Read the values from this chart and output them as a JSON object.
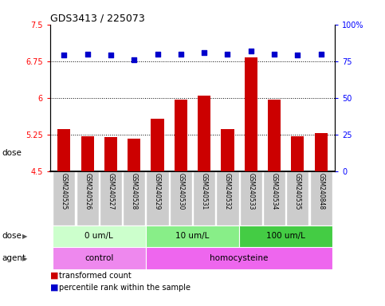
{
  "title": "GDS3413 / 225073",
  "samples": [
    "GSM240525",
    "GSM240526",
    "GSM240527",
    "GSM240528",
    "GSM240529",
    "GSM240530",
    "GSM240531",
    "GSM240532",
    "GSM240533",
    "GSM240534",
    "GSM240535",
    "GSM240848"
  ],
  "bar_values": [
    5.37,
    5.22,
    5.2,
    5.17,
    5.58,
    5.96,
    6.04,
    5.37,
    6.83,
    5.96,
    5.22,
    5.28
  ],
  "percentile_values": [
    79,
    80,
    79,
    76,
    80,
    80,
    81,
    80,
    82,
    80,
    79,
    80
  ],
  "ylim_left": [
    4.5,
    7.5
  ],
  "ylim_right": [
    0,
    100
  ],
  "yticks_left": [
    4.5,
    5.25,
    6.0,
    6.75,
    7.5
  ],
  "ytick_labels_left": [
    "4.5",
    "5.25",
    "6",
    "6.75",
    "7.5"
  ],
  "yticks_right": [
    0,
    25,
    50,
    75,
    100
  ],
  "ytick_labels_right": [
    "0",
    "25",
    "50",
    "75",
    "100%"
  ],
  "hlines": [
    5.25,
    6.0,
    6.75
  ],
  "bar_color": "#CC0000",
  "dot_color": "#0000CC",
  "bar_width": 0.55,
  "dose_groups": [
    {
      "label": "0 um/L",
      "start": 0,
      "end": 3,
      "color": "#CCFFCC"
    },
    {
      "label": "10 um/L",
      "start": 4,
      "end": 7,
      "color": "#88EE88"
    },
    {
      "label": "100 um/L",
      "start": 8,
      "end": 11,
      "color": "#44CC44"
    }
  ],
  "agent_groups": [
    {
      "label": "control",
      "start": 0,
      "end": 3,
      "color": "#EE88EE"
    },
    {
      "label": "homocysteine",
      "start": 4,
      "end": 11,
      "color": "#EE66EE"
    }
  ],
  "dose_label": "dose",
  "agent_label": "agent",
  "legend_bar_label": "transformed count",
  "legend_dot_label": "percentile rank within the sample",
  "fig_width": 4.83,
  "fig_height": 3.84,
  "bg_color": "#FFFFFF",
  "xtick_bg_color": "#CCCCCC",
  "xtick_border_color": "#FFFFFF"
}
